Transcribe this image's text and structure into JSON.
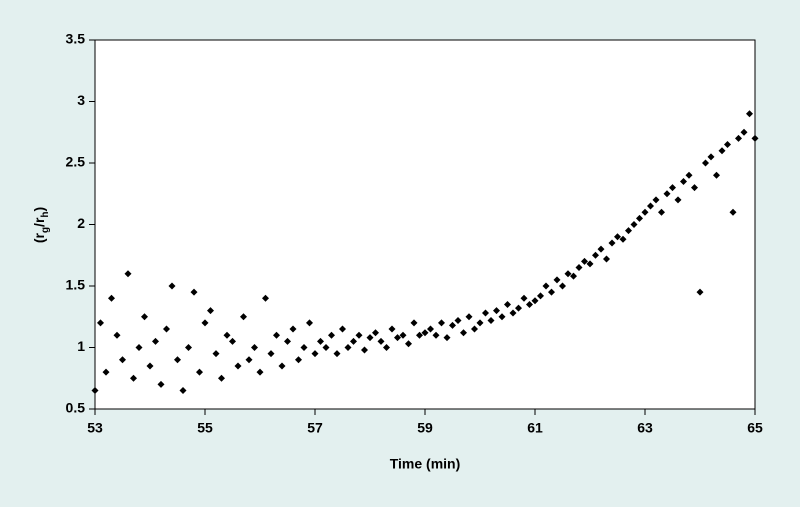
{
  "chart_data": {
    "type": "scatter",
    "xlabel": "Time (min)",
    "ylabel": [
      "(r",
      "g",
      "/r",
      "h",
      ")"
    ],
    "color": "#000000",
    "xlim": [
      53,
      65
    ],
    "xticks": [
      53,
      55,
      57,
      59,
      61,
      63,
      65
    ],
    "ylim": [
      0.5,
      3.5
    ],
    "yticks": [
      0.5,
      1,
      1.5,
      2,
      2.5,
      3,
      3.5
    ],
    "x": [
      53.0,
      53.1,
      53.2,
      53.3,
      53.4,
      53.5,
      53.6,
      53.7,
      53.8,
      53.9,
      54.0,
      54.1,
      54.2,
      54.3,
      54.4,
      54.5,
      54.6,
      54.7,
      54.8,
      54.9,
      55.0,
      55.1,
      55.2,
      55.3,
      55.4,
      55.5,
      55.6,
      55.7,
      55.8,
      55.9,
      56.0,
      56.1,
      56.2,
      56.3,
      56.4,
      56.5,
      56.6,
      56.7,
      56.8,
      56.9,
      57.0,
      57.1,
      57.2,
      57.3,
      57.4,
      57.5,
      57.6,
      57.7,
      57.8,
      57.9,
      58.0,
      58.1,
      58.2,
      58.3,
      58.4,
      58.5,
      58.6,
      58.7,
      58.8,
      58.9,
      59.0,
      59.1,
      59.2,
      59.3,
      59.4,
      59.5,
      59.6,
      59.7,
      59.8,
      59.9,
      60.0,
      60.1,
      60.2,
      60.3,
      60.4,
      60.5,
      60.6,
      60.7,
      60.8,
      60.9,
      61.0,
      61.1,
      61.2,
      61.3,
      61.4,
      61.5,
      61.6,
      61.7,
      61.8,
      61.9,
      62.0,
      62.1,
      62.2,
      62.3,
      62.4,
      62.5,
      62.6,
      62.7,
      62.8,
      62.9,
      63.0,
      63.1,
      63.2,
      63.3,
      63.4,
      63.5,
      63.6,
      63.7,
      63.8,
      63.9,
      64.0,
      64.1,
      64.2,
      64.3,
      64.4,
      64.5,
      64.6,
      64.7,
      64.8,
      64.9,
      65.0
    ],
    "y": [
      0.65,
      1.2,
      0.8,
      1.4,
      1.1,
      0.9,
      1.6,
      0.75,
      1.0,
      1.25,
      0.85,
      1.05,
      0.7,
      1.15,
      1.5,
      0.9,
      0.65,
      1.0,
      1.45,
      0.8,
      1.2,
      1.3,
      0.95,
      0.75,
      1.1,
      1.05,
      0.85,
      1.25,
      0.9,
      1.0,
      0.8,
      1.4,
      0.95,
      1.1,
      0.85,
      1.05,
      1.15,
      0.9,
      1.0,
      1.2,
      0.95,
      1.05,
      1.0,
      1.1,
      0.95,
      1.15,
      1.0,
      1.05,
      1.1,
      0.98,
      1.08,
      1.12,
      1.05,
      1.0,
      1.15,
      1.08,
      1.1,
      1.03,
      1.2,
      1.1,
      1.12,
      1.15,
      1.1,
      1.2,
      1.08,
      1.18,
      1.22,
      1.12,
      1.25,
      1.15,
      1.2,
      1.28,
      1.22,
      1.3,
      1.25,
      1.35,
      1.28,
      1.32,
      1.4,
      1.35,
      1.38,
      1.42,
      1.5,
      1.45,
      1.55,
      1.5,
      1.6,
      1.58,
      1.65,
      1.7,
      1.68,
      1.75,
      1.8,
      1.72,
      1.85,
      1.9,
      1.88,
      1.95,
      2.0,
      2.05,
      2.1,
      2.15,
      2.2,
      2.1,
      2.25,
      2.3,
      2.2,
      2.35,
      2.4,
      2.3,
      1.45,
      2.5,
      2.55,
      2.4,
      2.6,
      2.65,
      2.1,
      2.7,
      2.75,
      2.9,
      2.7
    ]
  }
}
